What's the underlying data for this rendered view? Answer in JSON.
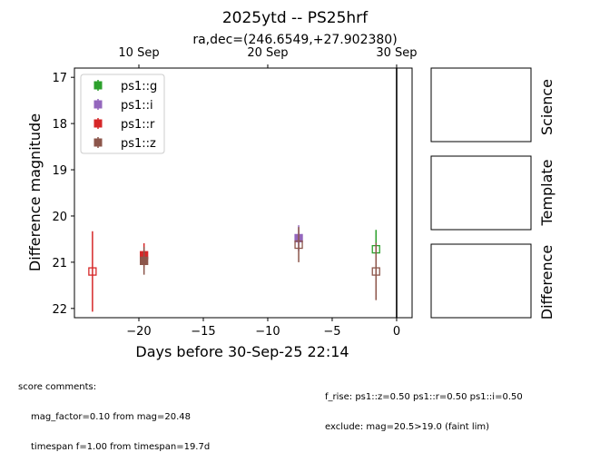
{
  "chart_data": {
    "type": "scatter",
    "title": "2025ytd -- PS25hrf",
    "subtitle": "ra,dec=(246.6549,+27.902380)",
    "xlabel": "Days before 30-Sep-25 22:14",
    "ylabel": "Difference magnitude",
    "xlim": [
      -25,
      1.2
    ],
    "ylim": [
      22.2,
      16.8
    ],
    "y_inverted": true,
    "x_ticks": [
      -20,
      -15,
      -10,
      -5,
      0
    ],
    "x_tick_labels": [
      "−20",
      "−15",
      "−10",
      "−5",
      "0"
    ],
    "y_ticks": [
      17,
      18,
      19,
      20,
      21,
      22
    ],
    "y_tick_labels": [
      "17",
      "18",
      "19",
      "20",
      "21",
      "22"
    ],
    "top_axis_ticks": [
      {
        "x": -20,
        "label": "10 Sep"
      },
      {
        "x": -10,
        "label": "20 Sep"
      },
      {
        "x": 0,
        "label": "30 Sep"
      }
    ],
    "vline_x": 0,
    "legend_position": "upper-left",
    "series": [
      {
        "name": "ps1::g",
        "color": "#2ca02c",
        "points": [
          {
            "x": -1.6,
            "y": 20.72,
            "yerr": 0.42,
            "filled": false
          }
        ]
      },
      {
        "name": "ps1::i",
        "color": "#9467bd",
        "points": [
          {
            "x": -7.6,
            "y": 20.48,
            "yerr": 0.28,
            "filled": true
          }
        ]
      },
      {
        "name": "ps1::r",
        "color": "#d62728",
        "points": [
          {
            "x": -23.6,
            "y": 21.2,
            "yerr": 0.87,
            "filled": false
          },
          {
            "x": -19.6,
            "y": 20.85,
            "yerr": 0.26,
            "filled": true
          }
        ]
      },
      {
        "name": "ps1::z",
        "color": "#8c564b",
        "points": [
          {
            "x": -19.6,
            "y": 20.97,
            "yerr": 0.3,
            "filled": true
          },
          {
            "x": -7.6,
            "y": 20.62,
            "yerr": 0.38,
            "filled": false
          },
          {
            "x": -1.6,
            "y": 21.2,
            "yerr": 0.62,
            "filled": false
          }
        ]
      }
    ]
  },
  "stamps": {
    "science_label": "Science",
    "template_label": "Template",
    "difference_label": "Difference"
  },
  "comments": {
    "heading": "score comments:",
    "left_line1": "mag_factor=0.10 from mag=20.48",
    "left_line2": "timespan f=1.00 from timespan=19.7d",
    "right_line1": "f_rise: ps1::z=0.50 ps1::r=0.50 ps1::i=0.50",
    "right_line2": "exclude: mag=20.5>19.0 (faint lim)"
  }
}
